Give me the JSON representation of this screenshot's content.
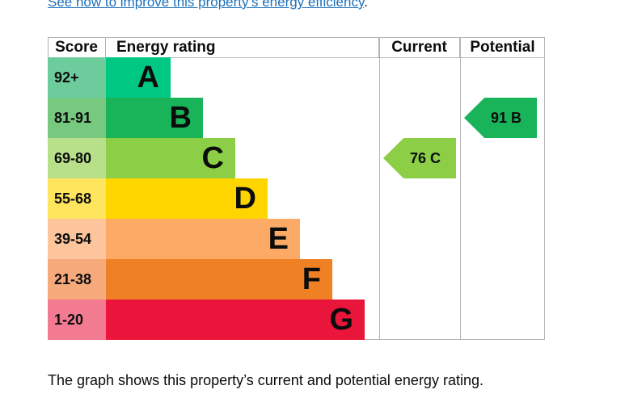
{
  "top_link": {
    "text": "See how to improve this property’s energy efficiency",
    "period": "."
  },
  "table": {
    "headers": {
      "score": "Score",
      "rating": "Energy rating",
      "current": "Current",
      "potential": "Potential"
    },
    "rows": [
      {
        "score": "92+",
        "letter": "A",
        "score_bg": "#6ccc9c",
        "bar_color": "#00c781",
        "bar_width_pct": 20
      },
      {
        "score": "81-91",
        "letter": "B",
        "score_bg": "#77c97f",
        "bar_color": "#19b459",
        "bar_width_pct": 30
      },
      {
        "score": "69-80",
        "letter": "C",
        "score_bg": "#b8e08b",
        "bar_color": "#8cce46",
        "bar_width_pct": 40
      },
      {
        "score": "55-68",
        "letter": "D",
        "score_bg": "#ffe45e",
        "bar_color": "#ffd500",
        "bar_width_pct": 50
      },
      {
        "score": "39-54",
        "letter": "E",
        "score_bg": "#fdc59b",
        "bar_color": "#fcaa65",
        "bar_width_pct": 60
      },
      {
        "score": "21-38",
        "letter": "F",
        "score_bg": "#f6a97a",
        "bar_color": "#ef8023",
        "bar_width_pct": 70
      },
      {
        "score": "1-20",
        "letter": "G",
        "score_bg": "#f27b91",
        "bar_color": "#e9153b",
        "bar_width_pct": 80
      }
    ],
    "current": {
      "value": "76",
      "band": "C",
      "color": "#8cce46"
    },
    "potential": {
      "value": "91",
      "band": "B",
      "color": "#19b459"
    }
  },
  "caption": "The graph shows this property’s current and potential energy rating."
}
